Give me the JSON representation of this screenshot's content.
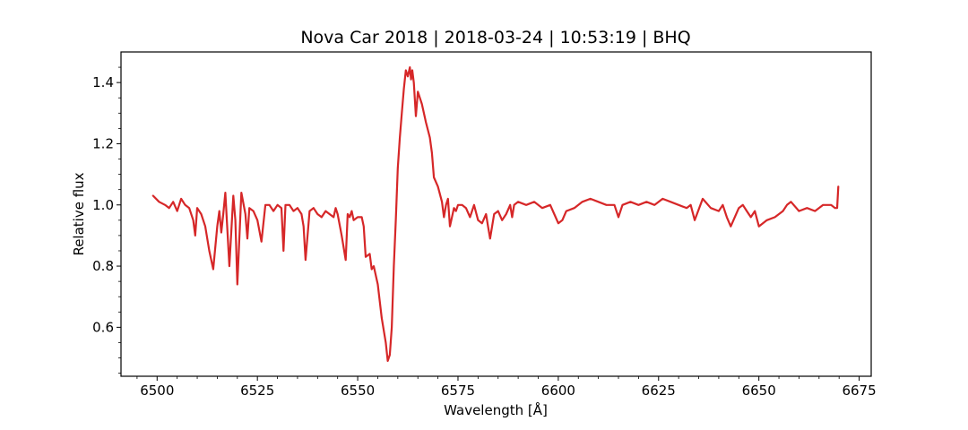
{
  "chart_data": {
    "type": "line",
    "title": "Nova Car 2018 | 2018-03-24 | 10:53:19 | BHQ",
    "xlabel": "Wavelength [Å]",
    "ylabel": "Relative flux",
    "xlim": [
      6491,
      6678
    ],
    "ylim": [
      0.44,
      1.5
    ],
    "xticks": [
      6500,
      6525,
      6550,
      6575,
      6600,
      6625,
      6650,
      6675
    ],
    "xtick_labels": [
      "6500",
      "6525",
      "6550",
      "6575",
      "6600",
      "6625",
      "6650",
      "6675"
    ],
    "yticks": [
      0.6,
      0.8,
      1.0,
      1.2,
      1.4
    ],
    "ytick_labels": [
      "0.6",
      "0.8",
      "1.0",
      "1.2",
      "1.4"
    ],
    "grid": false,
    "line_color": "#d62728",
    "series": [
      {
        "x": [
          6499.0,
          6500.5,
          6502.0,
          6503.0,
          6504.0,
          6505.0,
          6506.0,
          6507.0,
          6508.0,
          6509.0,
          6509.5,
          6510.0,
          6511.0,
          6512.0,
          6513.0,
          6514.0,
          6515.0,
          6515.5,
          6516.0,
          6516.5,
          6517.0,
          6518.0,
          6519.0,
          6519.5,
          6520.0,
          6521.0,
          6522.0,
          6522.5,
          6523.0,
          6524.0,
          6525.0,
          6526.0,
          6527.0,
          6528.0,
          6529.0,
          6530.0,
          6531.0,
          6531.5,
          6532.0,
          6533.0,
          6534.0,
          6535.0,
          6536.0,
          6536.5,
          6537.0,
          6538.0,
          6539.0,
          6540.0,
          6541.0,
          6542.0,
          6543.0,
          6544.0,
          6544.5,
          6545.0,
          6546.0,
          6547.0,
          6547.5,
          6548.0,
          6548.5,
          6549.0,
          6550.0,
          6551.0,
          6551.5,
          6552.0,
          6553.0,
          6553.5,
          6554.0,
          6555.0,
          6556.0,
          6557.0,
          6557.5,
          6558.0,
          6558.5,
          6559.0,
          6559.5,
          6560.0,
          6560.5,
          6561.0,
          6561.5,
          6562.0,
          6562.5,
          6563.0,
          6563.3,
          6563.6,
          6564.0,
          6564.5,
          6565.0,
          6566.0,
          6567.0,
          6568.0,
          6568.5,
          6569.0,
          6570.0,
          6571.0,
          6571.5,
          6572.0,
          6572.5,
          6573.0,
          6574.0,
          6574.5,
          6575.0,
          6576.0,
          6577.0,
          6578.0,
          6579.0,
          6580.0,
          6581.0,
          6582.0,
          6582.5,
          6583.0,
          6584.0,
          6585.0,
          6586.0,
          6587.0,
          6588.0,
          6588.5,
          6589.0,
          6590.0,
          6592.0,
          6594.0,
          6596.0,
          6598.0,
          6599.0,
          6600.0,
          6601.0,
          6602.0,
          6604.0,
          6606.0,
          6608.0,
          6610.0,
          6612.0,
          6614.0,
          6615.0,
          6616.0,
          6618.0,
          6620.0,
          6622.0,
          6624.0,
          6626.0,
          6628.0,
          6630.0,
          6632.0,
          6633.0,
          6634.0,
          6636.0,
          6638.0,
          6640.0,
          6641.0,
          6642.0,
          6643.0,
          6644.0,
          6645.0,
          6646.0,
          6647.0,
          6648.0,
          6649.0,
          6650.0,
          6652.0,
          6654.0,
          6656.0,
          6657.0,
          6658.0,
          6660.0,
          6662.0,
          6664.0,
          6666.0,
          6668.0,
          6669.0,
          6669.5,
          6669.8
        ],
        "y": [
          1.03,
          1.01,
          1.0,
          0.99,
          1.01,
          0.98,
          1.02,
          1.0,
          0.99,
          0.95,
          0.9,
          0.99,
          0.97,
          0.93,
          0.85,
          0.79,
          0.93,
          0.98,
          0.91,
          0.97,
          1.04,
          0.8,
          1.03,
          0.95,
          0.74,
          1.04,
          0.97,
          0.89,
          0.99,
          0.98,
          0.95,
          0.88,
          1.0,
          1.0,
          0.98,
          1.0,
          0.99,
          0.85,
          1.0,
          1.0,
          0.98,
          0.99,
          0.97,
          0.93,
          0.82,
          0.98,
          0.99,
          0.97,
          0.96,
          0.98,
          0.97,
          0.96,
          0.99,
          0.97,
          0.9,
          0.82,
          0.97,
          0.96,
          0.98,
          0.95,
          0.96,
          0.96,
          0.93,
          0.83,
          0.84,
          0.79,
          0.8,
          0.74,
          0.63,
          0.55,
          0.49,
          0.51,
          0.6,
          0.8,
          0.95,
          1.12,
          1.22,
          1.3,
          1.38,
          1.44,
          1.42,
          1.45,
          1.41,
          1.44,
          1.4,
          1.29,
          1.37,
          1.33,
          1.27,
          1.22,
          1.17,
          1.09,
          1.06,
          1.01,
          0.96,
          1.0,
          1.02,
          0.93,
          0.99,
          0.98,
          1.0,
          1.0,
          0.99,
          0.96,
          1.0,
          0.95,
          0.94,
          0.97,
          0.93,
          0.89,
          0.97,
          0.98,
          0.95,
          0.97,
          1.0,
          0.96,
          1.0,
          1.01,
          1.0,
          1.01,
          0.99,
          1.0,
          0.97,
          0.94,
          0.95,
          0.98,
          0.99,
          1.01,
          1.02,
          1.01,
          1.0,
          1.0,
          0.96,
          1.0,
          1.01,
          1.0,
          1.01,
          1.0,
          1.02,
          1.01,
          1.0,
          0.99,
          1.0,
          0.95,
          1.02,
          0.99,
          0.98,
          1.0,
          0.96,
          0.93,
          0.96,
          0.99,
          1.0,
          0.98,
          0.96,
          0.98,
          0.93,
          0.95,
          0.96,
          0.98,
          1.0,
          1.01,
          0.98,
          0.99,
          0.98,
          1.0,
          1.0,
          0.99,
          0.99,
          1.06
        ]
      }
    ]
  }
}
